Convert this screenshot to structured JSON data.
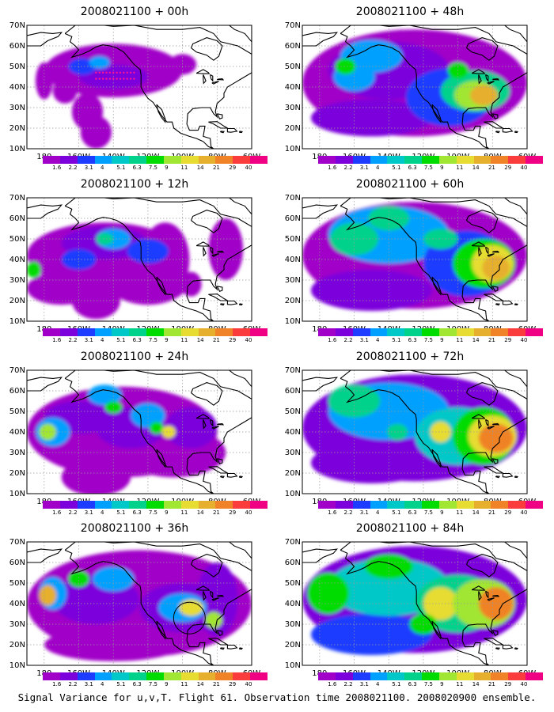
{
  "footer": "Signal Variance for u,v,T. Flight 61. Observation time 2008021100. 2008020900 ensemble.",
  "axes": {
    "lat_labels": [
      "70N",
      "60N",
      "50N",
      "40N",
      "30N",
      "20N",
      "10N"
    ],
    "lon_labels": [
      "180",
      "160W",
      "140W",
      "120W",
      "100W",
      "80W",
      "60W"
    ]
  },
  "colorbar": {
    "labels": [
      "1.6",
      "2.2",
      "3.1",
      "4",
      "5.1",
      "6.3",
      "7.5",
      "9",
      "11",
      "14",
      "21",
      "29",
      "40"
    ],
    "colors": [
      "#a000c8",
      "#7b00dc",
      "#1e3cff",
      "#00a0ff",
      "#00c8c8",
      "#00d28c",
      "#00dc00",
      "#a0e632",
      "#e6dc32",
      "#e6af2d",
      "#f08228",
      "#fa3c3c",
      "#f00082"
    ]
  },
  "panels": [
    {
      "id": "p00",
      "title": "2008021100 + 00h",
      "level": 0
    },
    {
      "id": "p48",
      "title": "2008021100 + 48h",
      "level": 4
    },
    {
      "id": "p12",
      "title": "2008021100 + 12h",
      "level": 1
    },
    {
      "id": "p60",
      "title": "2008021100 + 60h",
      "level": 5
    },
    {
      "id": "p24",
      "title": "2008021100 + 24h",
      "level": 2
    },
    {
      "id": "p72",
      "title": "2008021100 + 72h",
      "level": 6
    },
    {
      "id": "p36",
      "title": "2008021100 + 36h",
      "level": 3
    },
    {
      "id": "p84",
      "title": "2008021100 + 84h",
      "level": 7
    }
  ]
}
